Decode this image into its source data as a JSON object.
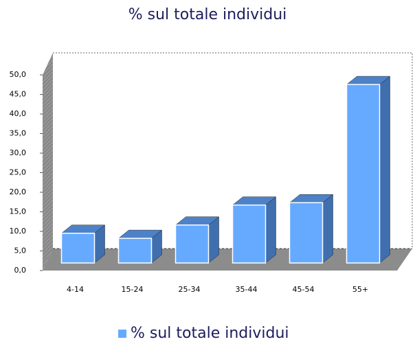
{
  "chart_data": {
    "type": "bar",
    "title": "% sul totale individui",
    "categories": [
      "4-14",
      "15-24",
      "25-34",
      "35-44",
      "45-54",
      "55+"
    ],
    "series": [
      {
        "name": "% sul totale individui",
        "color": "#66aaff",
        "values": [
          7.6,
          6.3,
          9.7,
          14.8,
          15.4,
          45.6
        ]
      }
    ],
    "ylim": [
      0,
      50
    ],
    "yticks": [
      {
        "value": 0,
        "label": "0,0"
      },
      {
        "value": 5,
        "label": "5,0"
      },
      {
        "value": 10,
        "label": "10,0"
      },
      {
        "value": 15,
        "label": "15,0"
      },
      {
        "value": 20,
        "label": "20,0"
      },
      {
        "value": 25,
        "label": "25,0"
      },
      {
        "value": 30,
        "label": "30,0"
      },
      {
        "value": 35,
        "label": "35,0"
      },
      {
        "value": 40,
        "label": "40,0"
      },
      {
        "value": 45,
        "label": "45,0"
      },
      {
        "value": 50,
        "label": "50,0"
      }
    ],
    "legend": "bottom"
  }
}
